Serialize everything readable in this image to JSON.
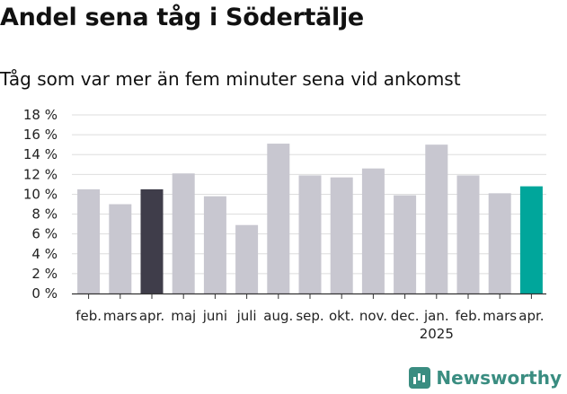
{
  "title": "Andel sena tåg i Södertälje",
  "subtitle": "Tåg som var mer än fem minuter sena vid ankomst",
  "brand": {
    "name": "Newsworthy",
    "logo_icon": "newsworthy-chart-icon",
    "color": "#3a8d81"
  },
  "colors": {
    "default": "#c8c7d0",
    "previous_year_month": "#3f3d4a",
    "latest": "#00a69b"
  },
  "chart_data": {
    "type": "bar",
    "categories": [
      "feb.",
      "mars",
      "apr.",
      "maj",
      "juni",
      "juli",
      "aug.",
      "sep.",
      "okt.",
      "nov.",
      "dec.",
      "jan.",
      "feb.",
      "mars",
      "apr."
    ],
    "year_label": "2025",
    "year_label_index": 11,
    "values": [
      10.5,
      9.0,
      10.5,
      12.1,
      9.8,
      6.9,
      15.1,
      11.9,
      11.7,
      12.6,
      9.9,
      15.0,
      11.9,
      10.1,
      10.8
    ],
    "highlight": {
      "2": "previous_year_month",
      "14": "latest"
    },
    "yticks": [
      "0 %",
      "2 %",
      "4 %",
      "6 %",
      "8 %",
      "10 %",
      "12 %",
      "14 %",
      "16 %",
      "18 %"
    ],
    "ylim": [
      0,
      18
    ],
    "ystep": 2,
    "grid": true
  }
}
